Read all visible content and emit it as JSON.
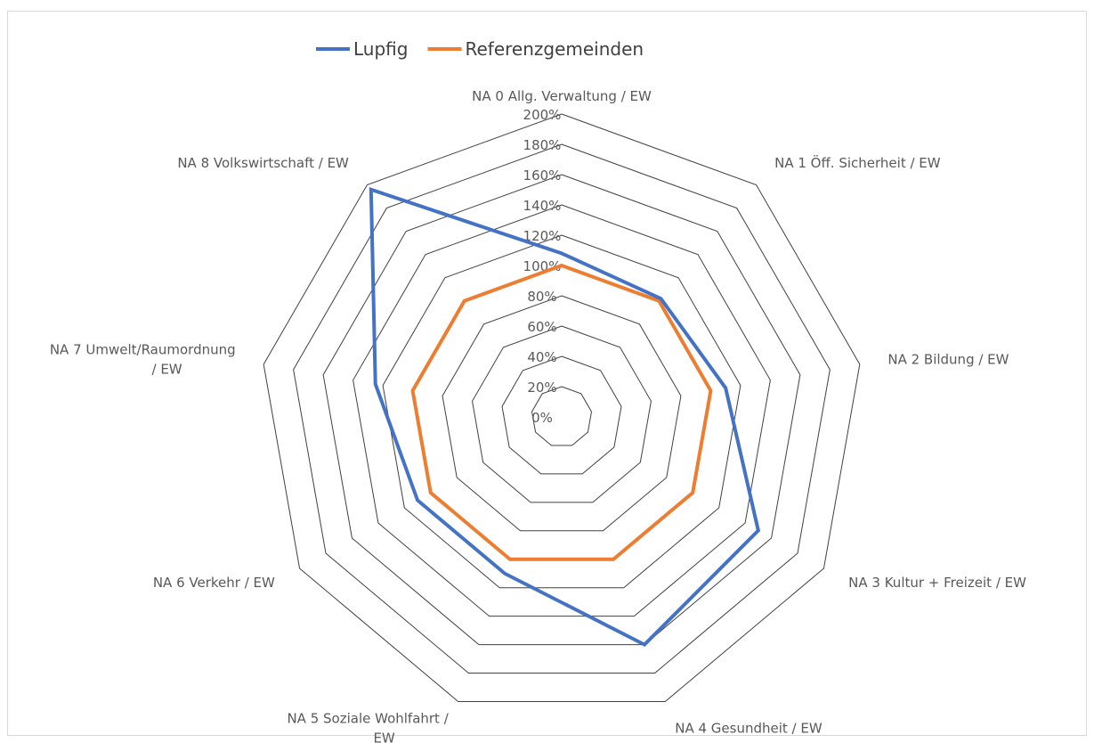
{
  "chart_data": {
    "type": "radar",
    "categories": [
      [
        "NA 0 Allg. Verwaltung / EW"
      ],
      [
        "NA 1 Öff. Sicherheit / EW"
      ],
      [
        "NA 2 Bildung / EW"
      ],
      [
        "NA 3 Kultur + Freizeit / EW"
      ],
      [
        "NA 4 Gesundheit / EW"
      ],
      [
        "NA 5 Soziale Wohlfahrt /",
        "EW"
      ],
      [
        "NA 6 Verkehr / EW"
      ],
      [
        "NA 7 Umwelt/Raumordnung",
        "/ EW"
      ],
      [
        "NA 8 Volkswirtschaft / EW"
      ]
    ],
    "tick_labels": [
      "0%",
      "20%",
      "40%",
      "60%",
      "80%",
      "100%",
      "120%",
      "140%",
      "160%",
      "180%",
      "200%"
    ],
    "rmax": 200,
    "tick_step": 20,
    "series": [
      {
        "name": "Lupfig",
        "color": "#4472C4",
        "values": [
          108,
          102,
          110,
          150,
          160,
          110,
          110,
          125,
          196
        ]
      },
      {
        "name": "Referenzgemeinden",
        "color": "#ED7D31",
        "values": [
          100,
          100,
          100,
          100,
          100,
          100,
          100,
          100,
          100
        ]
      }
    ],
    "grid_color": "#404040",
    "legend_position": "top-left"
  }
}
